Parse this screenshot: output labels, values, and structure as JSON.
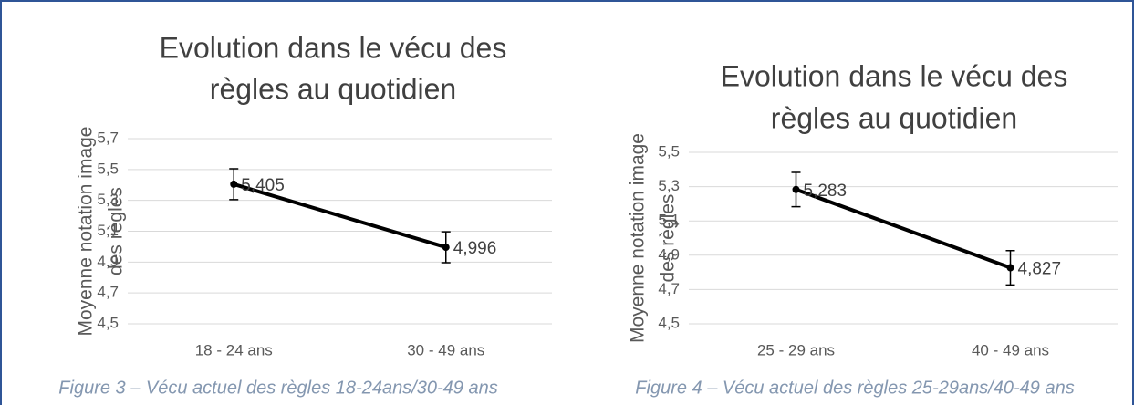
{
  "chart_data": [
    {
      "type": "line",
      "title": [
        "Evolution dans le vécu des",
        "règles au quotidien"
      ],
      "ylabel": [
        "Moyenne notation image",
        "des règles"
      ],
      "categories": [
        "18 - 24 ans",
        "30 - 49 ans"
      ],
      "series": [
        {
          "name": null,
          "color": "#000000",
          "values": [
            5.405,
            4.996
          ],
          "value_labels": [
            "5,405",
            "4,996"
          ],
          "errors": [
            0.1,
            0.1
          ]
        }
      ],
      "ylim": [
        4.5,
        5.7
      ],
      "yticks": [
        {
          "value": 4.5,
          "label": "4,5"
        },
        {
          "value": 4.7,
          "label": "4,7"
        },
        {
          "value": 4.9,
          "label": "4,9"
        },
        {
          "value": 5.1,
          "label": "5,1"
        },
        {
          "value": 5.3,
          "label": "5,3"
        },
        {
          "value": 5.5,
          "label": "5,5"
        },
        {
          "value": 5.7,
          "label": "5,7"
        }
      ],
      "grid": true,
      "caption": "Figure 3 – Vécu actuel des règles 18-24ans/30-49 ans"
    },
    {
      "type": "line",
      "title": [
        "Evolution dans le vécu des",
        "règles au quotidien"
      ],
      "ylabel": [
        "Moyenne notation image",
        "des règles"
      ],
      "categories": [
        "25 - 29 ans",
        "40 - 49 ans"
      ],
      "series": [
        {
          "name": null,
          "color": "#000000",
          "values": [
            5.283,
            4.827
          ],
          "value_labels": [
            "5,283",
            "4,827"
          ],
          "errors": [
            0.1,
            0.1
          ]
        }
      ],
      "ylim": [
        4.5,
        5.5
      ],
      "yticks": [
        {
          "value": 4.5,
          "label": "4,5"
        },
        {
          "value": 4.7,
          "label": "4,7"
        },
        {
          "value": 4.9,
          "label": "4,9"
        },
        {
          "value": 5.1,
          "label": "5,1"
        },
        {
          "value": 5.3,
          "label": "5,3"
        },
        {
          "value": 5.5,
          "label": "5,5"
        }
      ],
      "grid": true,
      "caption": "Figure 4 – Vécu actuel des règles 25-29ans/40-49 ans"
    }
  ]
}
